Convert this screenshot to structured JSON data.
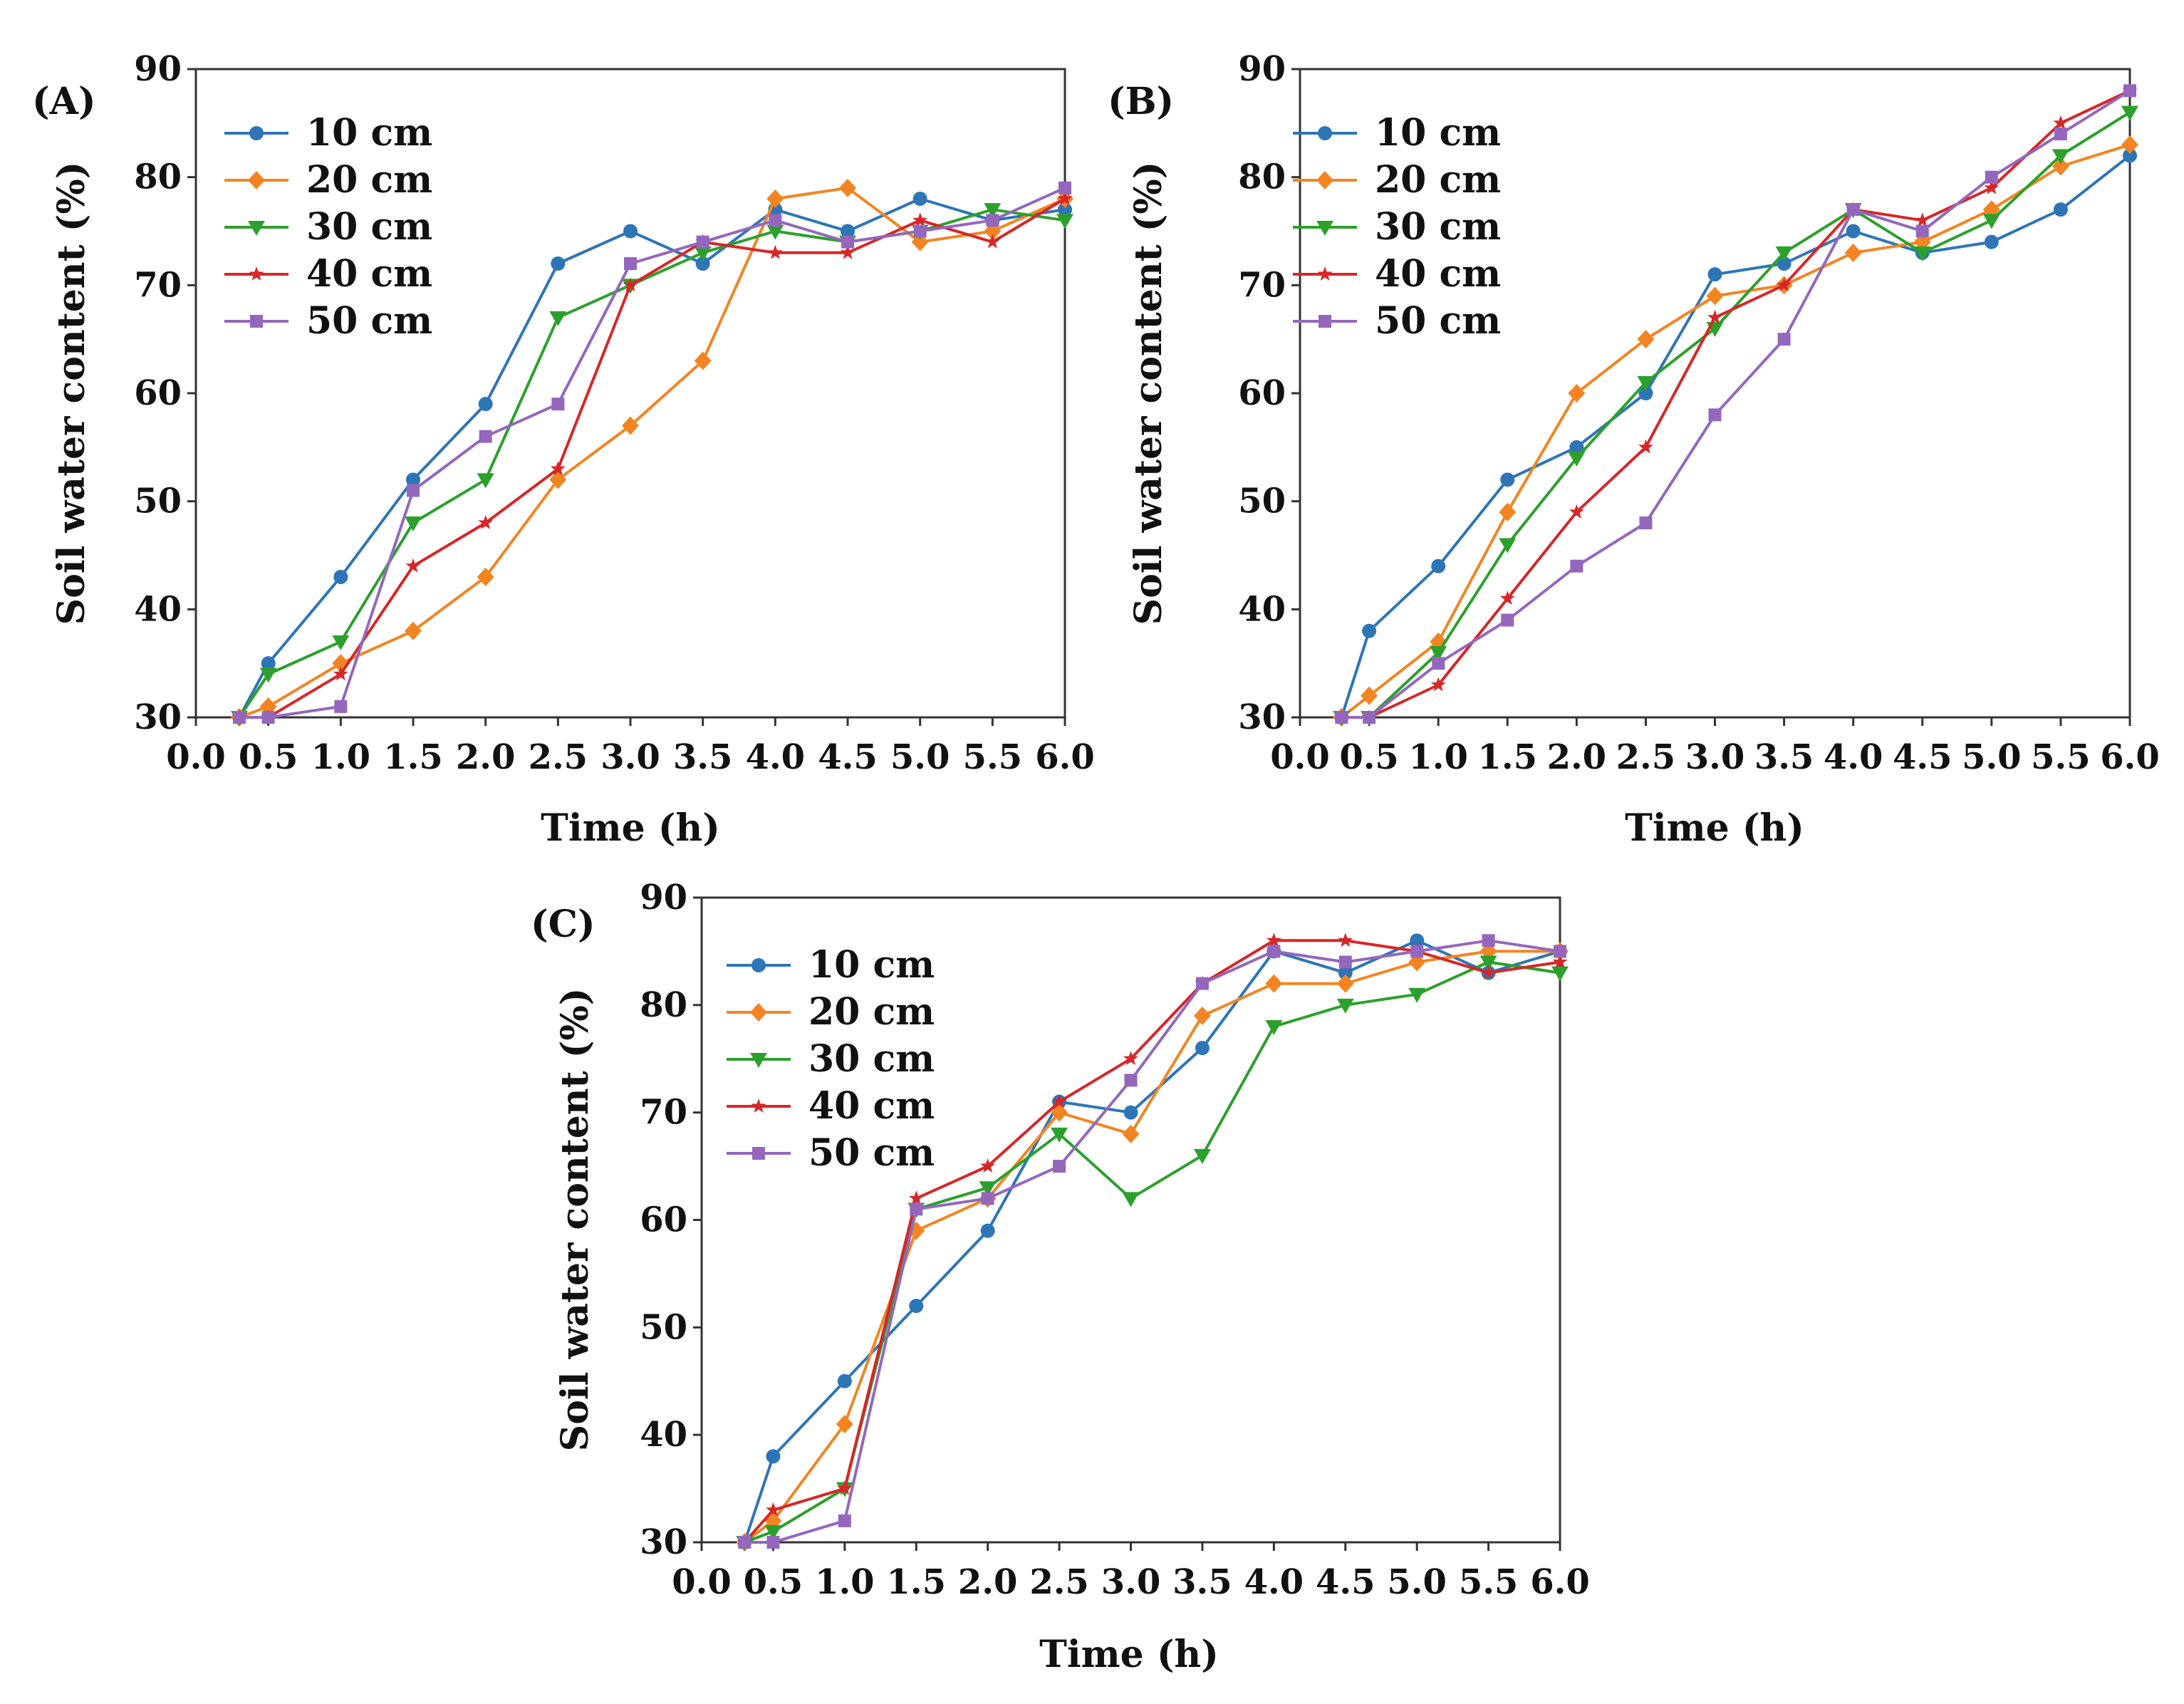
{
  "colors": {
    "10 cm": "#2E75B6",
    "20 cm": "#F28522",
    "30 cm": "#2CA02C",
    "40 cm": "#D62728",
    "50 cm": "#9467BD",
    "axis": "#333333"
  },
  "chart_data": [
    {
      "type": "line",
      "panel_label": "(A)",
      "xlabel": "Time (h)",
      "ylabel": "Soil water content (%)",
      "xlim": [
        0,
        6
      ],
      "ylim": [
        30,
        90
      ],
      "x_ticks": [
        "0.0",
        "0.5",
        "1.0",
        "1.5",
        "2.0",
        "2.5",
        "3.0",
        "3.5",
        "4.0",
        "4.5",
        "5.0",
        "5.5",
        "6.0"
      ],
      "y_ticks": [
        "30",
        "40",
        "50",
        "60",
        "70",
        "80",
        "90"
      ],
      "legend": "top-left",
      "x": [
        0.3,
        0.5,
        1.0,
        1.5,
        2.0,
        2.5,
        3.0,
        3.5,
        4.0,
        4.5,
        5.0,
        5.5,
        6.0
      ],
      "series": [
        {
          "name": "10 cm",
          "marker": "circle",
          "values": [
            30,
            35,
            43,
            52,
            59,
            72,
            75,
            72,
            77,
            75,
            78,
            76,
            77
          ]
        },
        {
          "name": "20 cm",
          "marker": "diamond",
          "values": [
            30,
            31,
            35,
            38,
            43,
            52,
            57,
            63,
            78,
            79,
            74,
            75,
            78
          ]
        },
        {
          "name": "30 cm",
          "marker": "triangle",
          "values": [
            30,
            34,
            37,
            48,
            52,
            67,
            70,
            73,
            75,
            74,
            75,
            77,
            76
          ]
        },
        {
          "name": "40 cm",
          "marker": "star",
          "values": [
            30,
            30,
            34,
            44,
            48,
            53,
            70,
            74,
            73,
            73,
            76,
            74,
            78
          ]
        },
        {
          "name": "50 cm",
          "marker": "square",
          "values": [
            30,
            30,
            31,
            51,
            56,
            59,
            72,
            74,
            76,
            74,
            75,
            76,
            79
          ]
        }
      ]
    },
    {
      "type": "line",
      "panel_label": "(B)",
      "xlabel": "Time (h)",
      "ylabel": "Soil water content (%)",
      "xlim": [
        0,
        6
      ],
      "ylim": [
        30,
        90
      ],
      "x_ticks": [
        "0.0",
        "0.5",
        "1.0",
        "1.5",
        "2.0",
        "2.5",
        "3.0",
        "3.5",
        "4.0",
        "4.5",
        "5.0",
        "5.5",
        "6.0"
      ],
      "y_ticks": [
        "30",
        "40",
        "50",
        "60",
        "70",
        "80",
        "90"
      ],
      "legend": "top-left",
      "x": [
        0.3,
        0.5,
        1.0,
        1.5,
        2.0,
        2.5,
        3.0,
        3.5,
        4.0,
        4.5,
        5.0,
        5.5,
        6.0
      ],
      "series": [
        {
          "name": "10 cm",
          "marker": "circle",
          "values": [
            30,
            38,
            44,
            52,
            55,
            60,
            71,
            72,
            75,
            73,
            74,
            77,
            82
          ]
        },
        {
          "name": "20 cm",
          "marker": "diamond",
          "values": [
            30,
            32,
            37,
            49,
            60,
            65,
            69,
            70,
            73,
            74,
            77,
            81,
            83
          ]
        },
        {
          "name": "30 cm",
          "marker": "triangle",
          "values": [
            30,
            30,
            36,
            46,
            54,
            61,
            66,
            73,
            77,
            73,
            76,
            82,
            86
          ]
        },
        {
          "name": "40 cm",
          "marker": "star",
          "values": [
            30,
            30,
            33,
            41,
            49,
            55,
            67,
            70,
            77,
            76,
            79,
            85,
            88
          ]
        },
        {
          "name": "50 cm",
          "marker": "square",
          "values": [
            30,
            30,
            35,
            39,
            44,
            48,
            58,
            65,
            77,
            75,
            80,
            84,
            88
          ]
        }
      ]
    },
    {
      "type": "line",
      "panel_label": "(C)",
      "xlabel": "Time (h)",
      "ylabel": "Soil water content (%)",
      "xlim": [
        0,
        6
      ],
      "ylim": [
        30,
        90
      ],
      "x_ticks": [
        "0.0",
        "0.5",
        "1.0",
        "1.5",
        "2.0",
        "2.5",
        "3.0",
        "3.5",
        "4.0",
        "4.5",
        "5.0",
        "5.5",
        "6.0"
      ],
      "y_ticks": [
        "30",
        "40",
        "50",
        "60",
        "70",
        "80",
        "90"
      ],
      "legend": "top-left",
      "x": [
        0.3,
        0.5,
        1.0,
        1.5,
        2.0,
        2.5,
        3.0,
        3.5,
        4.0,
        4.5,
        5.0,
        5.5,
        6.0
      ],
      "series": [
        {
          "name": "10 cm",
          "marker": "circle",
          "values": [
            30,
            38,
            45,
            52,
            59,
            71,
            70,
            76,
            85,
            83,
            86,
            83,
            85
          ]
        },
        {
          "name": "20 cm",
          "marker": "diamond",
          "values": [
            30,
            32,
            41,
            59,
            62,
            70,
            68,
            79,
            82,
            82,
            84,
            85,
            85
          ]
        },
        {
          "name": "30 cm",
          "marker": "triangle",
          "values": [
            30,
            31,
            35,
            61,
            63,
            68,
            62,
            66,
            78,
            80,
            81,
            84,
            83
          ]
        },
        {
          "name": "40 cm",
          "marker": "star",
          "values": [
            30,
            33,
            35,
            62,
            65,
            71,
            75,
            82,
            86,
            86,
            85,
            83,
            84
          ]
        },
        {
          "name": "50 cm",
          "marker": "square",
          "values": [
            30,
            30,
            32,
            61,
            62,
            65,
            73,
            82,
            85,
            84,
            85,
            86,
            85
          ]
        }
      ]
    }
  ]
}
